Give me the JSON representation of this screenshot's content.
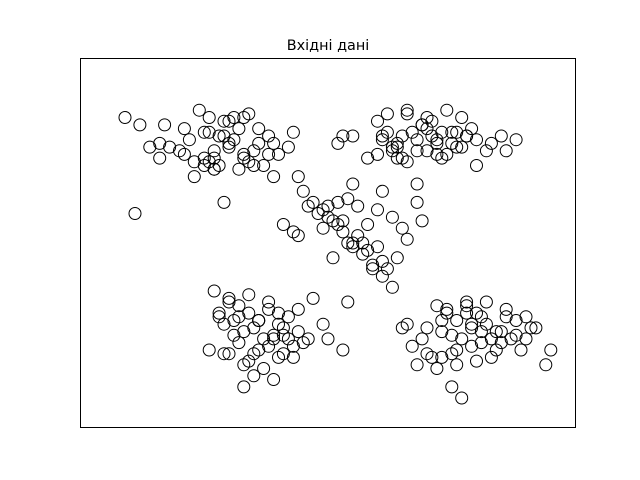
{
  "chart_data": {
    "type": "scatter",
    "title": "Вхідні дані",
    "xlabel": "",
    "ylabel": "",
    "xticks": [],
    "yticks": [],
    "grid": false,
    "legend": "none",
    "xlim": [
      0,
      10
    ],
    "ylim": [
      0,
      10
    ],
    "marker": "open-circle",
    "marker_color": "#000000",
    "series": [
      {
        "x": [
          1.2,
          0.9,
          1.6,
          2.0,
          1.8,
          2.1,
          2.3,
          2.7,
          2.5,
          2.9,
          3.1,
          3.4,
          3.6,
          2.4,
          2.6,
          3.0,
          3.3,
          2.8,
          3.2,
          2.2,
          2.5,
          2.7,
          3.5,
          4.3,
          4.2,
          3.0,
          2.6,
          3.8,
          3.4,
          3.9,
          2.9,
          3.3,
          3.0,
          1.4,
          2.5,
          3.7,
          2.6,
          3.1,
          2.3,
          3.6,
          2.8,
          3.2,
          3.8,
          1.6,
          1.7,
          2.7,
          2.1,
          3.3,
          2.7,
          3.5,
          4.0,
          3.9,
          1.1,
          2.9
        ],
        "y": [
          8.2,
          8.4,
          7.7,
          7.5,
          7.6,
          7.4,
          7.2,
          7.5,
          8.0,
          8.3,
          7.8,
          7.2,
          8.1,
          8.6,
          8.4,
          7.6,
          7.4,
          7.1,
          7.0,
          7.8,
          7.3,
          7.0,
          7.5,
          8.0,
          7.6,
          8.3,
          7.2,
          7.9,
          8.5,
          7.7,
          7.9,
          7.3,
          7.7,
          7.6,
          7.1,
          7.1,
          8.0,
          8.4,
          6.8,
          7.7,
          7.9,
          8.1,
          7.4,
          7.3,
          8.2,
          7.0,
          8.1,
          8.4,
          7.3,
          7.1,
          7.4,
          6.8,
          5.8,
          6.1
        ]
      },
      {
        "x": [
          6.0,
          6.2,
          6.4,
          6.6,
          6.8,
          7.0,
          7.2,
          7.4,
          7.6,
          6.5,
          6.9,
          7.3,
          7.7,
          8.0,
          8.2,
          6.1,
          6.3,
          6.7,
          7.1,
          7.5,
          7.9,
          6.4,
          6.8,
          7.2,
          7.6,
          8.3,
          8.5,
          5.3,
          5.2,
          5.5,
          6.0,
          6.6,
          7.0,
          8.0,
          7.8,
          6.2,
          7.3,
          7.7,
          6.6,
          6.9,
          7.4,
          7.8,
          6.5,
          6.4,
          6.1,
          7.1,
          7.5,
          6.8,
          7.2,
          8.6,
          8.8,
          6.3,
          7.0,
          5.8
        ],
        "y": [
          8.3,
          8.0,
          7.7,
          8.5,
          7.8,
          8.1,
          7.4,
          8.6,
          7.6,
          7.9,
          8.2,
          7.3,
          8.4,
          7.8,
          7.5,
          7.9,
          7.6,
          8.0,
          8.3,
          7.7,
          8.1,
          7.3,
          7.5,
          7.8,
          8.0,
          7.7,
          7.9,
          7.9,
          7.7,
          7.9,
          7.4,
          7.2,
          7.5,
          7.1,
          7.9,
          8.5,
          8.0,
          7.6,
          8.6,
          8.2,
          7.4,
          7.9,
          7.3,
          7.6,
          7.8,
          7.9,
          8.0,
          6.6,
          7.7,
          7.5,
          7.8,
          7.5,
          8.4,
          7.3
        ]
      },
      {
        "x": [
          2.7,
          3.0,
          3.2,
          3.4,
          3.6,
          3.8,
          4.0,
          4.2,
          4.4,
          2.9,
          3.3,
          3.7,
          4.1,
          4.5,
          2.8,
          3.1,
          3.5,
          3.9,
          4.3,
          2.6,
          3.0,
          3.4,
          3.8,
          4.2,
          3.2,
          3.6,
          4.0,
          5.3,
          5.0,
          4.9,
          4.6,
          4.1,
          3.7,
          3.3,
          3.5,
          3.9,
          3.1,
          2.8,
          4.4,
          4.7,
          5.4,
          3.4,
          3.8,
          3.0,
          3.6,
          3.2,
          3.9,
          4.1,
          2.9,
          3.5,
          3.6,
          4.3,
          3.3,
          4.0
        ],
        "y": [
          3.7,
          3.5,
          3.3,
          3.1,
          2.9,
          3.2,
          2.8,
          3.0,
          2.6,
          2.8,
          2.6,
          2.4,
          2.7,
          2.3,
          3.1,
          2.9,
          2.7,
          2.5,
          2.2,
          2.1,
          2.0,
          1.8,
          2.2,
          2.4,
          2.3,
          2.1,
          1.9,
          2.1,
          2.4,
          2.8,
          2.4,
          2.0,
          1.6,
          1.1,
          1.4,
          1.3,
          2.5,
          3.0,
          3.2,
          3.5,
          3.4,
          3.6,
          3.4,
          3.4,
          2.9,
          3.0,
          2.4,
          2.5,
          2.0,
          2.0,
          2.9,
          1.9,
          1.7,
          3.1
        ],
        "note": ""
      },
      {
        "x": [
          7.2,
          7.4,
          7.6,
          7.8,
          8.0,
          8.2,
          8.4,
          8.6,
          8.8,
          7.3,
          7.7,
          8.1,
          8.5,
          8.9,
          7.5,
          7.9,
          8.3,
          8.7,
          7.1,
          7.6,
          8.0,
          8.4,
          6.9,
          7.0,
          7.3,
          7.8,
          8.6,
          9.0,
          9.1,
          9.0,
          9.2,
          9.5,
          9.4,
          8.1,
          7.4,
          7.8,
          8.2,
          7.9,
          7.2,
          6.8,
          6.5,
          6.7,
          7.5,
          7.7,
          8.3,
          7.9,
          8.5,
          7.6,
          7.0,
          7.3,
          8.1,
          7.5,
          6.6,
          8.8
        ],
        "y": [
          3.3,
          3.1,
          2.9,
          3.4,
          3.1,
          2.8,
          2.6,
          3.2,
          2.9,
          2.6,
          2.4,
          2.6,
          2.3,
          2.1,
          2.0,
          2.2,
          1.9,
          2.4,
          1.9,
          1.7,
          1.8,
          2.1,
          2.4,
          2.7,
          2.9,
          3.1,
          3.0,
          2.4,
          2.7,
          3.0,
          2.7,
          2.1,
          1.7,
          3.0,
          3.2,
          3.3,
          3.4,
          2.8,
          1.6,
          1.7,
          2.7,
          2.2,
          1.1,
          0.8,
          2.4,
          2.7,
          2.6,
          2.1,
          2.0,
          1.9,
          2.3,
          2.5,
          2.8,
          2.5
        ]
      },
      {
        "x": [
          4.5,
          4.7,
          4.9,
          5.1,
          5.3,
          5.5,
          5.7,
          5.9,
          6.1,
          6.3,
          4.8,
          5.2,
          5.6,
          6.0,
          6.4,
          4.6,
          5.0,
          5.4,
          5.8,
          6.2,
          4.9,
          5.3,
          5.7,
          6.1,
          5.1,
          5.5,
          5.9,
          4.4,
          6.5,
          6.6,
          5.2,
          5.4,
          5.6,
          4.3,
          6.8,
          6.9,
          6.3,
          6.0,
          5.8,
          5.0,
          6.1,
          5.5,
          4.1,
          4.4
        ],
        "y": [
          6.4,
          6.1,
          5.9,
          5.6,
          5.3,
          5.0,
          4.7,
          4.4,
          4.1,
          3.8,
          5.8,
          5.5,
          5.2,
          4.9,
          4.6,
          6.0,
          5.7,
          5.0,
          4.8,
          4.3,
          5.4,
          5.6,
          5.0,
          4.5,
          4.6,
          4.9,
          4.3,
          5.2,
          5.4,
          5.1,
          6.1,
          6.2,
          6.0,
          5.3,
          6.1,
          5.6,
          5.7,
          5.9,
          5.5,
          6.0,
          6.4,
          6.6,
          5.5,
          6.8
        ]
      }
    ]
  }
}
